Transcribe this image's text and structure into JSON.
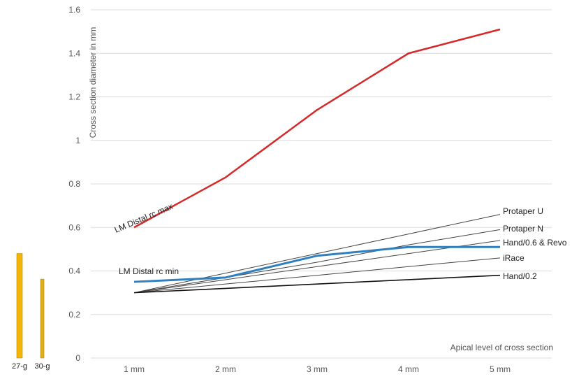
{
  "chart_data": {
    "type": "line",
    "xlabel": "Apical level of cross section",
    "ylabel": "Cross section diameter in mm",
    "categories": [
      "1 mm",
      "2 mm",
      "3 mm",
      "4 mm",
      "5 mm"
    ],
    "ylim": [
      0,
      1.6
    ],
    "yticks": [
      "0",
      "0.2",
      "0.4",
      "0.6",
      "0.8",
      "1",
      "1.2",
      "1.4",
      "1.6"
    ],
    "grid": true,
    "series": [
      {
        "name": "LM Distal rc max",
        "values": [
          0.6,
          0.83,
          1.14,
          1.4,
          1.51
        ],
        "color": "#d42a2a"
      },
      {
        "name": "LM Distal rc min",
        "values": [
          0.35,
          0.37,
          0.47,
          0.51,
          0.51
        ],
        "color": "#2f80c0"
      },
      {
        "name": "Protaper U",
        "values": [
          0.3,
          0.39,
          0.48,
          0.57,
          0.66
        ],
        "color": "#444444"
      },
      {
        "name": "Protaper N",
        "values": [
          0.3,
          0.37,
          0.44,
          0.52,
          0.59
        ],
        "color": "#444444"
      },
      {
        "name": "Hand/0.6 & Revo",
        "values": [
          0.3,
          0.36,
          0.42,
          0.48,
          0.54
        ],
        "color": "#444444"
      },
      {
        "name": "iRace",
        "values": [
          0.3,
          0.34,
          0.38,
          0.42,
          0.46
        ],
        "color": "#444444"
      },
      {
        "name": "Hand/0.2",
        "values": [
          0.3,
          0.32,
          0.34,
          0.36,
          0.38
        ],
        "color": "#111111"
      }
    ]
  },
  "needles": [
    {
      "label": "27-g",
      "value": 0.49,
      "color": "#f2b705"
    },
    {
      "label": "30-g",
      "value": 0.37,
      "color": "#d9b020"
    }
  ]
}
